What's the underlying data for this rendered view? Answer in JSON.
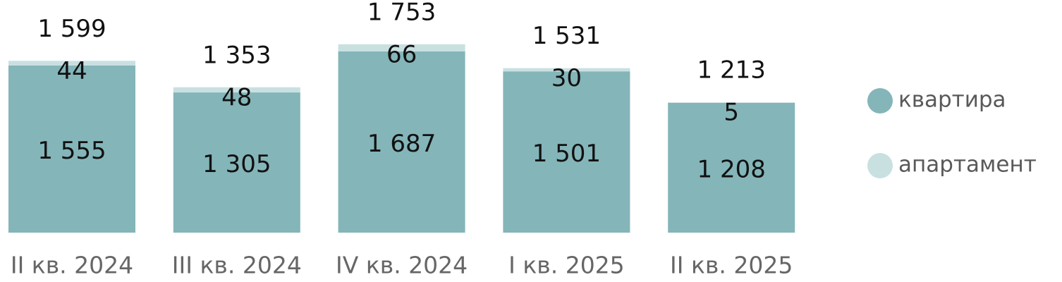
{
  "chart_data": {
    "type": "stacked-bar",
    "categories": [
      "II кв. 2024",
      "III кв. 2024",
      "IV кв. 2024",
      "I кв. 2025",
      "II кв. 2025"
    ],
    "series": [
      {
        "name": "квартира",
        "color": "#84b5b9",
        "values": [
          1555,
          1305,
          1687,
          1501,
          1208
        ],
        "value_labels": [
          "1 555",
          "1 305",
          "1 687",
          "1 501",
          "1 208"
        ]
      },
      {
        "name": "апартамент",
        "color": "#c9e0e1",
        "values": [
          44,
          48,
          66,
          30,
          5
        ]
      }
    ],
    "totals": [
      1599,
      1353,
      1753,
      1531,
      1213
    ],
    "total_labels": [
      "1 599",
      "1 353",
      "1 753",
      "1 531",
      "1 213"
    ],
    "ylim": [
      0,
      2165
    ],
    "legend": "right"
  }
}
